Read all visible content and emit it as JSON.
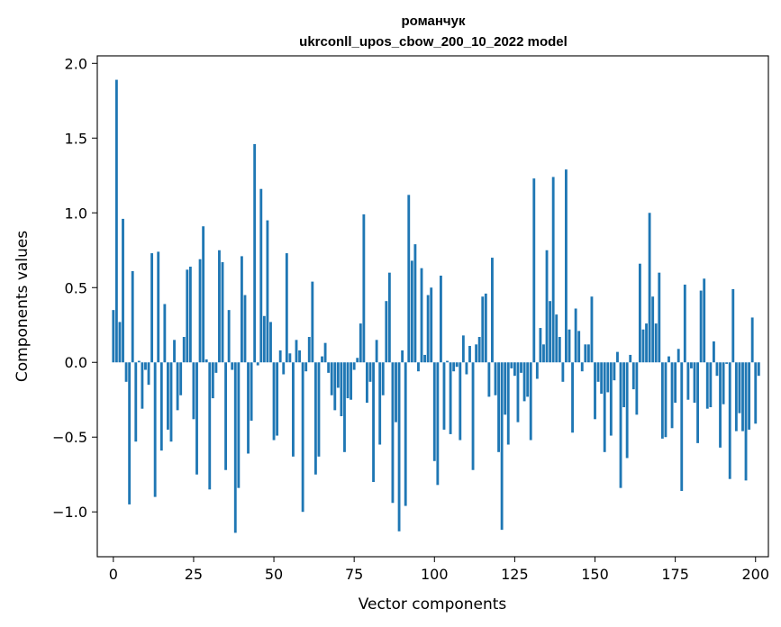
{
  "chart_data": {
    "type": "bar",
    "title": "романчук",
    "subtitle": "ukrconll_upos_cbow_200_10_2022 model",
    "xlabel": "Vector components",
    "ylabel": "Components values",
    "xlim": [
      -5,
      204
    ],
    "ylim": [
      -1.3,
      2.05
    ],
    "xticks": [
      0,
      25,
      50,
      75,
      100,
      125,
      150,
      175,
      200
    ],
    "yticks": [
      -1.0,
      -0.5,
      0.0,
      0.5,
      1.0,
      1.5,
      2.0
    ],
    "ytick_labels": [
      "−1.0",
      "−0.5",
      "0.0",
      "0.5",
      "1.0",
      "1.5",
      "2.0"
    ],
    "grid": false,
    "bar_color": "#1f77b4",
    "values": [
      0.35,
      1.89,
      0.27,
      0.96,
      -0.13,
      -0.95,
      0.61,
      -0.53,
      0.01,
      -0.31,
      -0.05,
      -0.15,
      0.73,
      -0.9,
      0.74,
      -0.59,
      0.39,
      -0.45,
      -0.53,
      0.15,
      -0.32,
      -0.22,
      0.17,
      0.62,
      0.64,
      -0.38,
      -0.75,
      0.69,
      0.91,
      0.02,
      -0.85,
      -0.24,
      -0.07,
      0.75,
      0.67,
      -0.72,
      0.35,
      -0.05,
      -1.14,
      -0.84,
      0.71,
      0.45,
      -0.61,
      -0.39,
      1.46,
      -0.02,
      1.16,
      0.31,
      0.95,
      0.27,
      -0.52,
      -0.49,
      0.08,
      -0.08,
      0.73,
      0.06,
      -0.63,
      0.15,
      0.08,
      -1.0,
      -0.06,
      0.17,
      0.54,
      -0.75,
      -0.63,
      0.04,
      0.13,
      -0.07,
      -0.22,
      -0.32,
      -0.17,
      -0.36,
      -0.6,
      -0.24,
      -0.25,
      -0.05,
      0.03,
      0.26,
      0.99,
      -0.27,
      -0.13,
      -0.8,
      0.15,
      -0.55,
      -0.22,
      0.41,
      0.6,
      -0.94,
      -0.4,
      -1.13,
      0.08,
      -0.96,
      1.12,
      0.68,
      0.79,
      -0.06,
      0.63,
      0.05,
      0.45,
      0.5,
      -0.66,
      -0.82,
      0.58,
      -0.45,
      0.01,
      -0.48,
      -0.06,
      -0.03,
      -0.52,
      0.18,
      -0.08,
      0.11,
      -0.72,
      0.12,
      0.17,
      0.44,
      0.46,
      -0.23,
      0.7,
      -0.22,
      -0.6,
      -1.12,
      -0.35,
      -0.55,
      -0.04,
      -0.09,
      -0.4,
      -0.07,
      -0.26,
      -0.23,
      -0.52,
      1.23,
      -0.11,
      0.23,
      0.12,
      0.75,
      0.41,
      1.24,
      0.32,
      0.17,
      -0.13,
      1.29,
      0.22,
      -0.47,
      0.36,
      0.21,
      -0.06,
      0.12,
      0.12,
      0.44,
      -0.38,
      -0.13,
      -0.21,
      -0.6,
      -0.2,
      -0.49,
      -0.12,
      0.07,
      -0.84,
      -0.3,
      -0.64,
      0.05,
      -0.18,
      -0.35,
      0.66,
      0.22,
      0.26,
      1.0,
      0.44,
      0.26,
      0.6,
      -0.51,
      -0.5,
      0.04,
      -0.44,
      -0.27,
      0.09,
      -0.86,
      0.52,
      -0.25,
      -0.04,
      -0.27,
      -0.54,
      0.48,
      0.56,
      -0.31,
      -0.3,
      0.14,
      -0.09,
      -0.57,
      -0.28,
      -0.01,
      -0.78,
      0.49,
      -0.46,
      -0.34,
      -0.46,
      -0.79,
      -0.45,
      0.3,
      -0.41,
      -0.09
    ]
  }
}
